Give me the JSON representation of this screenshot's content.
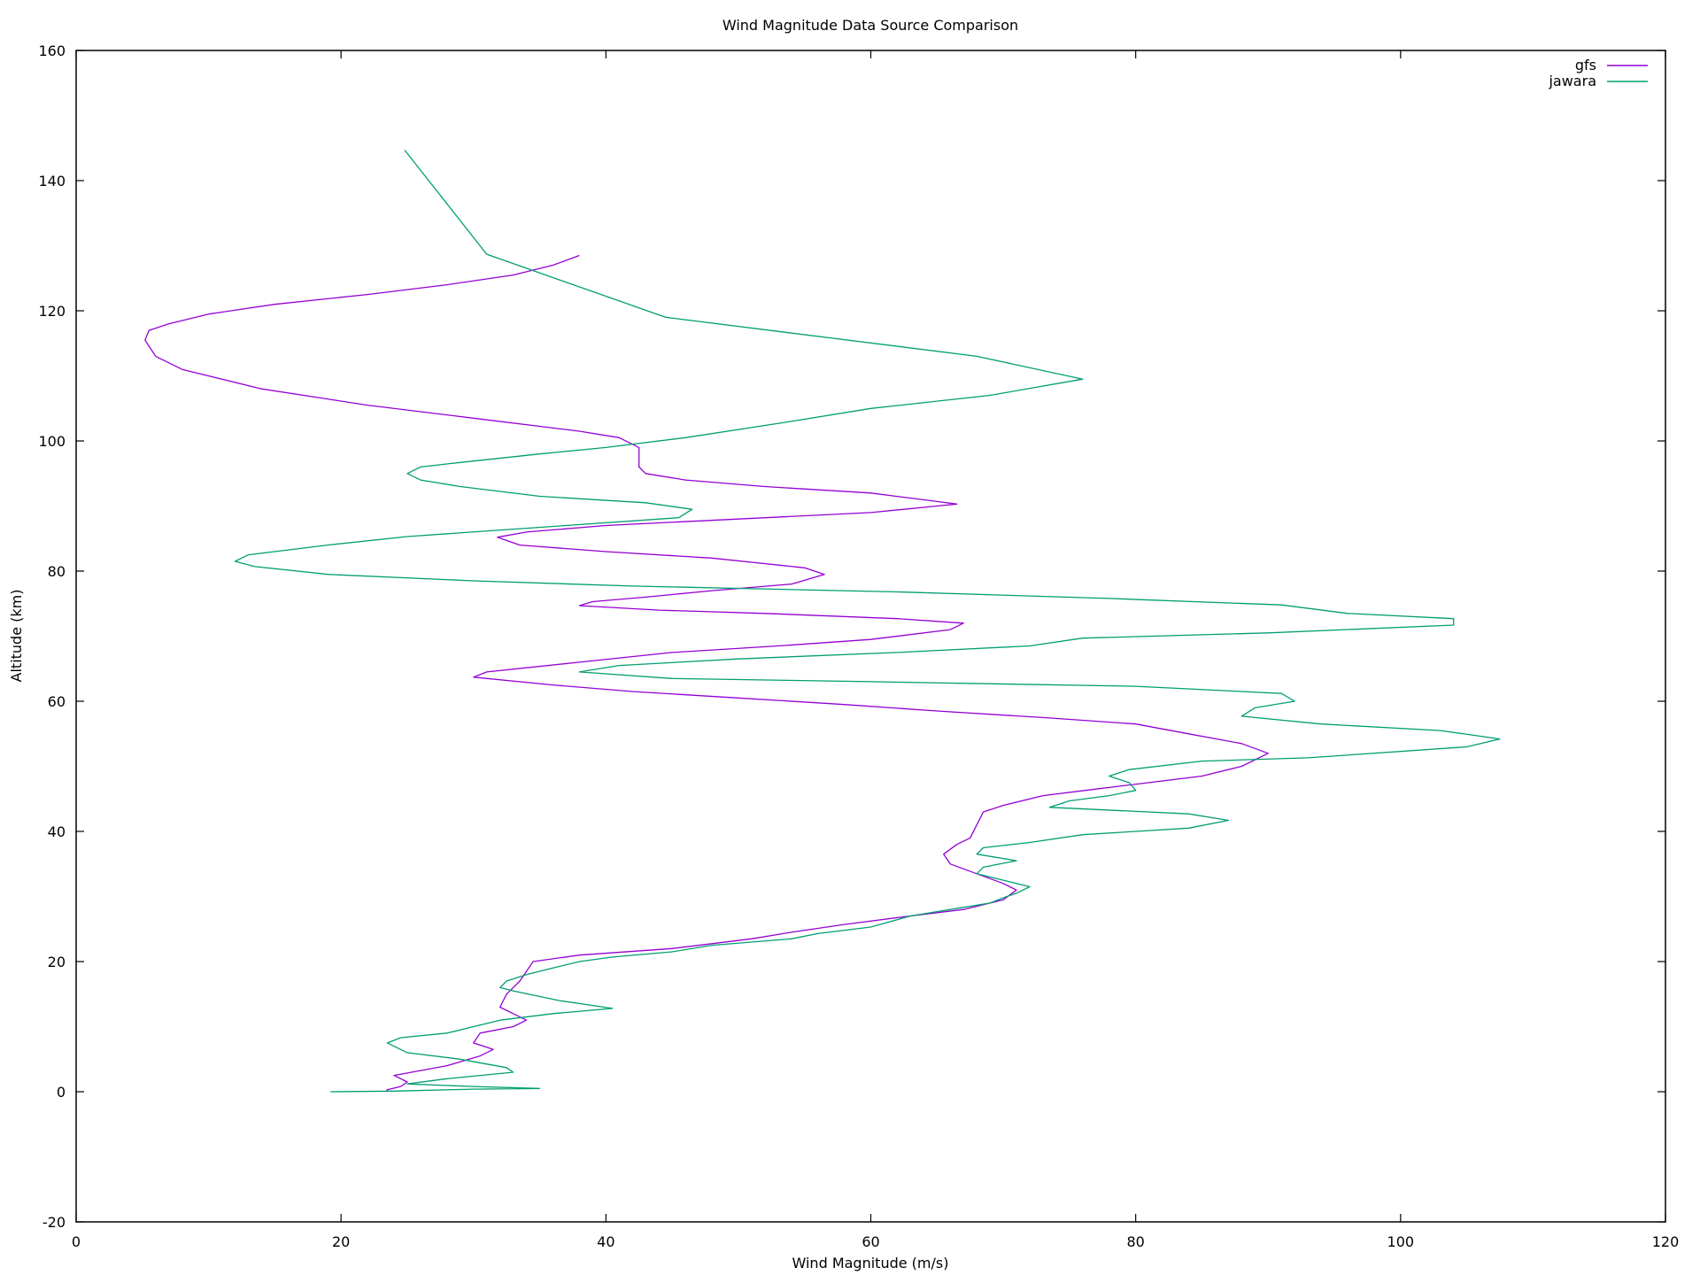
{
  "chart_data": {
    "type": "line",
    "title": "Wind Magnitude Data Source Comparison",
    "xlabel": "Wind Magnitude (m/s)",
    "ylabel": "Altitude (km)",
    "xlim": [
      0,
      120
    ],
    "ylim": [
      -20,
      160
    ],
    "xticks": [
      0,
      20,
      40,
      60,
      80,
      100,
      120
    ],
    "yticks": [
      -20,
      0,
      20,
      40,
      60,
      80,
      100,
      120,
      140,
      160
    ],
    "grid": false,
    "legend_position": "top-right",
    "series": [
      {
        "name": "gfs",
        "color": "#9400d3",
        "points": [
          [
            23.4,
            0
          ],
          [
            23.5,
            0.3
          ],
          [
            24.5,
            0.8
          ],
          [
            25.0,
            1.5
          ],
          [
            24.0,
            2.5
          ],
          [
            28.0,
            4.0
          ],
          [
            30.5,
            5.5
          ],
          [
            31.5,
            6.5
          ],
          [
            30.0,
            7.5
          ],
          [
            30.5,
            9.0
          ],
          [
            33.0,
            10.0
          ],
          [
            34.0,
            11.0
          ],
          [
            33.0,
            12.0
          ],
          [
            32.0,
            13.0
          ],
          [
            32.5,
            15.0
          ],
          [
            33.5,
            17.0
          ],
          [
            34.0,
            18.5
          ],
          [
            34.5,
            20.0
          ],
          [
            38.0,
            21.0
          ],
          [
            45.0,
            22.0
          ],
          [
            51.0,
            23.5
          ],
          [
            54.0,
            24.5
          ],
          [
            58.0,
            25.7
          ],
          [
            63.0,
            27.0
          ],
          [
            67.0,
            28.0
          ],
          [
            70.0,
            29.5
          ],
          [
            71.0,
            31.0
          ],
          [
            70.0,
            32.0
          ],
          [
            68.0,
            33.5
          ],
          [
            66.0,
            35.0
          ],
          [
            65.5,
            36.5
          ],
          [
            66.5,
            38.0
          ],
          [
            67.5,
            39.0
          ],
          [
            68.0,
            41.0
          ],
          [
            68.5,
            43.0
          ],
          [
            70.0,
            44.0
          ],
          [
            73.0,
            45.5
          ],
          [
            77.0,
            46.5
          ],
          [
            81.0,
            47.5
          ],
          [
            85.0,
            48.5
          ],
          [
            88.0,
            50.0
          ],
          [
            90.0,
            52.0
          ],
          [
            88.0,
            53.5
          ],
          [
            84.0,
            55.0
          ],
          [
            80.0,
            56.5
          ],
          [
            73.0,
            57.5
          ],
          [
            65.0,
            58.5
          ],
          [
            58.0,
            59.5
          ],
          [
            50.0,
            60.5
          ],
          [
            42.0,
            61.5
          ],
          [
            36.0,
            62.5
          ],
          [
            30.0,
            63.7
          ],
          [
            31.0,
            64.5
          ],
          [
            38.0,
            66.0
          ],
          [
            45.0,
            67.5
          ],
          [
            53.0,
            68.5
          ],
          [
            60.0,
            69.5
          ],
          [
            66.0,
            71.0
          ],
          [
            67.0,
            72.0
          ],
          [
            62.0,
            72.7
          ],
          [
            52.0,
            73.5
          ],
          [
            44.0,
            74.0
          ],
          [
            38.0,
            74.7
          ],
          [
            39.0,
            75.3
          ],
          [
            43.0,
            76.0
          ],
          [
            48.0,
            77.0
          ],
          [
            54.0,
            78.0
          ],
          [
            56.5,
            79.5
          ],
          [
            55.0,
            80.5
          ],
          [
            48.0,
            82.0
          ],
          [
            40.0,
            83.0
          ],
          [
            33.5,
            84.0
          ],
          [
            31.8,
            85.2
          ],
          [
            34.0,
            86.0
          ],
          [
            40.0,
            87.0
          ],
          [
            50.0,
            88.0
          ],
          [
            60.0,
            89.0
          ],
          [
            65.0,
            90.0
          ],
          [
            66.5,
            90.3
          ],
          [
            65.0,
            90.7
          ],
          [
            60.0,
            92.0
          ],
          [
            52.0,
            93.0
          ],
          [
            46.0,
            94.0
          ],
          [
            43.0,
            95.0
          ],
          [
            42.5,
            96.0
          ],
          [
            42.5,
            97.5
          ],
          [
            42.5,
            99.0
          ],
          [
            41.0,
            100.5
          ],
          [
            38.0,
            101.5
          ],
          [
            30.0,
            103.5
          ],
          [
            22.0,
            105.5
          ],
          [
            14.0,
            108.0
          ],
          [
            8.0,
            111.0
          ],
          [
            6.0,
            113.0
          ],
          [
            5.2,
            115.5
          ],
          [
            5.5,
            117.0
          ],
          [
            7.0,
            118.0
          ],
          [
            10.0,
            119.5
          ],
          [
            15.0,
            121.0
          ],
          [
            22.0,
            122.5
          ],
          [
            28.0,
            124.0
          ],
          [
            33.0,
            125.5
          ],
          [
            36.0,
            127.0
          ],
          [
            38.0,
            128.5
          ]
        ]
      },
      {
        "name": "jawara",
        "color": "#009e73",
        "points": [
          [
            19.2,
            0
          ],
          [
            24.0,
            0.1
          ],
          [
            30.0,
            0.4
          ],
          [
            35.0,
            0.5
          ],
          [
            30.0,
            0.8
          ],
          [
            25.0,
            1.2
          ],
          [
            28.0,
            2.0
          ],
          [
            33.0,
            3.0
          ],
          [
            32.5,
            3.7
          ],
          [
            29.0,
            5.0
          ],
          [
            25.0,
            6.0
          ],
          [
            23.5,
            7.5
          ],
          [
            24.5,
            8.3
          ],
          [
            28.0,
            9.0
          ],
          [
            30.0,
            10.0
          ],
          [
            32.0,
            11.0
          ],
          [
            36.0,
            12.0
          ],
          [
            40.5,
            12.8
          ],
          [
            36.5,
            14.0
          ],
          [
            33.0,
            15.5
          ],
          [
            32.0,
            16.0
          ],
          [
            32.5,
            17.0
          ],
          [
            34.0,
            18.0
          ],
          [
            36.0,
            19.0
          ],
          [
            38.0,
            20.0
          ],
          [
            40.5,
            20.7
          ],
          [
            45.0,
            21.5
          ],
          [
            48.0,
            22.5
          ],
          [
            54.0,
            23.5
          ],
          [
            56.0,
            24.3
          ],
          [
            60.0,
            25.3
          ],
          [
            63.0,
            27.0
          ],
          [
            66.0,
            28.0
          ],
          [
            69.0,
            29.0
          ],
          [
            70.0,
            29.8
          ],
          [
            71.0,
            30.5
          ],
          [
            72.0,
            31.5
          ],
          [
            70.0,
            32.5
          ],
          [
            68.0,
            33.5
          ],
          [
            68.5,
            34.5
          ],
          [
            71.0,
            35.5
          ],
          [
            68.0,
            36.5
          ],
          [
            68.5,
            37.5
          ],
          [
            72.0,
            38.3
          ],
          [
            76.0,
            39.5
          ],
          [
            84.0,
            40.5
          ],
          [
            87.0,
            41.7
          ],
          [
            84.0,
            42.7
          ],
          [
            73.5,
            43.7
          ],
          [
            75.0,
            44.7
          ],
          [
            78.0,
            45.5
          ],
          [
            80.0,
            46.3
          ],
          [
            79.5,
            47.5
          ],
          [
            78.0,
            48.5
          ],
          [
            79.5,
            49.5
          ],
          [
            85.0,
            50.8
          ],
          [
            93.0,
            51.3
          ],
          [
            105.0,
            53.0
          ],
          [
            107.5,
            54.2
          ],
          [
            103.0,
            55.5
          ],
          [
            94.0,
            56.5
          ],
          [
            89.0,
            57.5
          ],
          [
            88.0,
            57.7
          ],
          [
            89.0,
            59.0
          ],
          [
            92.0,
            60.0
          ],
          [
            91.0,
            61.2
          ],
          [
            80.0,
            62.3
          ],
          [
            60.0,
            63.0
          ],
          [
            45.0,
            63.5
          ],
          [
            38.0,
            64.5
          ],
          [
            41.0,
            65.5
          ],
          [
            50.0,
            66.5
          ],
          [
            62.0,
            67.5
          ],
          [
            72.0,
            68.5
          ],
          [
            76.0,
            69.7
          ],
          [
            90.0,
            70.5
          ],
          [
            104.0,
            71.7
          ],
          [
            104.0,
            72.7
          ],
          [
            96.0,
            73.5
          ],
          [
            91.0,
            74.8
          ],
          [
            78.0,
            75.8
          ],
          [
            62.0,
            76.8
          ],
          [
            42.0,
            77.7
          ],
          [
            30.0,
            78.5
          ],
          [
            19.0,
            79.5
          ],
          [
            13.5,
            80.7
          ],
          [
            12.0,
            81.5
          ],
          [
            13.0,
            82.5
          ],
          [
            19.0,
            84.0
          ],
          [
            25.0,
            85.3
          ],
          [
            37.0,
            87.0
          ],
          [
            45.5,
            88.2
          ],
          [
            46.5,
            89.5
          ],
          [
            43.0,
            90.5
          ],
          [
            35.0,
            91.5
          ],
          [
            29.0,
            93.0
          ],
          [
            26.0,
            94.0
          ],
          [
            25.0,
            95.0
          ],
          [
            26.0,
            96.0
          ],
          [
            29.0,
            96.7
          ],
          [
            35.0,
            98.0
          ],
          [
            40.0,
            99.0
          ],
          [
            46.0,
            100.5
          ],
          [
            54.0,
            103.0
          ],
          [
            60.0,
            105.0
          ],
          [
            69.0,
            107.0
          ],
          [
            76.0,
            109.5
          ],
          [
            68.0,
            113.0
          ],
          [
            44.5,
            119.0
          ],
          [
            31.0,
            128.7
          ],
          [
            24.8,
            144.7
          ]
        ]
      }
    ]
  }
}
